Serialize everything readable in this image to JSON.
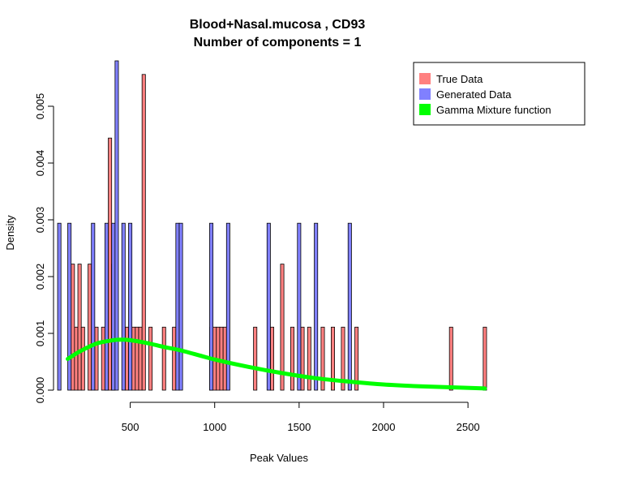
{
  "chart_data": {
    "type": "bar",
    "title": "Blood+Nasal.mucosa , CD93",
    "subtitle": "Number of components =  1",
    "xlabel": "Peak Values",
    "ylabel": "Density",
    "xlim": [
      65,
      2610
    ],
    "ylim": [
      0,
      0.0058
    ],
    "x_ticks": [
      500,
      1000,
      1500,
      2000,
      2500
    ],
    "y_ticks": [
      0.0,
      0.001,
      0.002,
      0.003,
      0.004,
      0.005
    ],
    "y_tick_labels": [
      "0.000",
      "0.001",
      "0.002",
      "0.003",
      "0.004",
      "0.005"
    ],
    "bin_width": 20,
    "grid": false,
    "legend_position": "top-right",
    "legend": [
      {
        "label": "True Data",
        "color": "#ff8080"
      },
      {
        "label": "Generated Data",
        "color": "#8080ff"
      },
      {
        "label": "Gamma Mixture function",
        "color": "#00ff00"
      }
    ],
    "series": [
      {
        "name": "True Data",
        "color": "#ff8080",
        "bins": [
          [
            150,
            0.00222
          ],
          [
            170,
            0.00111
          ],
          [
            190,
            0.00222
          ],
          [
            210,
            0.00111
          ],
          [
            250,
            0.00222
          ],
          [
            290,
            0.00111
          ],
          [
            330,
            0.00111
          ],
          [
            350,
            0.00111
          ],
          [
            370,
            0.00444
          ],
          [
            390,
            0.00222
          ],
          [
            470,
            0.00111
          ],
          [
            510,
            0.00111
          ],
          [
            530,
            0.00111
          ],
          [
            550,
            0.00111
          ],
          [
            570,
            0.00556
          ],
          [
            610,
            0.00111
          ],
          [
            690,
            0.00111
          ],
          [
            750,
            0.00111
          ],
          [
            970,
            0.00111
          ],
          [
            990,
            0.00111
          ],
          [
            1010,
            0.00111
          ],
          [
            1030,
            0.00111
          ],
          [
            1050,
            0.00111
          ],
          [
            1230,
            0.00111
          ],
          [
            1330,
            0.00111
          ],
          [
            1390,
            0.00222
          ],
          [
            1450,
            0.00111
          ],
          [
            1510,
            0.00111
          ],
          [
            1550,
            0.00111
          ],
          [
            1630,
            0.00111
          ],
          [
            1690,
            0.00111
          ],
          [
            1750,
            0.00111
          ],
          [
            1830,
            0.00111
          ],
          [
            2390,
            0.00111
          ],
          [
            2590,
            0.00111
          ]
        ]
      },
      {
        "name": "Generated Data",
        "color": "#8080ff",
        "bins": [
          [
            70,
            0.00294
          ],
          [
            130,
            0.00294
          ],
          [
            270,
            0.00294
          ],
          [
            350,
            0.00294
          ],
          [
            390,
            0.00294
          ],
          [
            410,
            0.0058
          ],
          [
            450,
            0.00294
          ],
          [
            490,
            0.00294
          ],
          [
            770,
            0.00294
          ],
          [
            790,
            0.00294
          ],
          [
            970,
            0.00294
          ],
          [
            1070,
            0.00294
          ],
          [
            1310,
            0.00294
          ],
          [
            1490,
            0.00294
          ],
          [
            1590,
            0.00294
          ],
          [
            1790,
            0.00294
          ]
        ]
      },
      {
        "name": "Gamma Mixture function",
        "color": "#00ff00",
        "type": "line",
        "x": [
          130,
          200,
          300,
          400,
          450,
          500,
          600,
          700,
          800,
          1000,
          1200,
          1400,
          1600,
          1800,
          2000,
          2200,
          2400,
          2600
        ],
        "y": [
          0.00055,
          0.00068,
          0.00082,
          0.00088,
          0.00089,
          0.00088,
          0.00083,
          0.00076,
          0.0007,
          0.00054,
          0.00041,
          0.0003,
          0.00021,
          0.00015,
          0.0001,
          7e-05,
          5e-05,
          3e-05
        ]
      }
    ]
  }
}
